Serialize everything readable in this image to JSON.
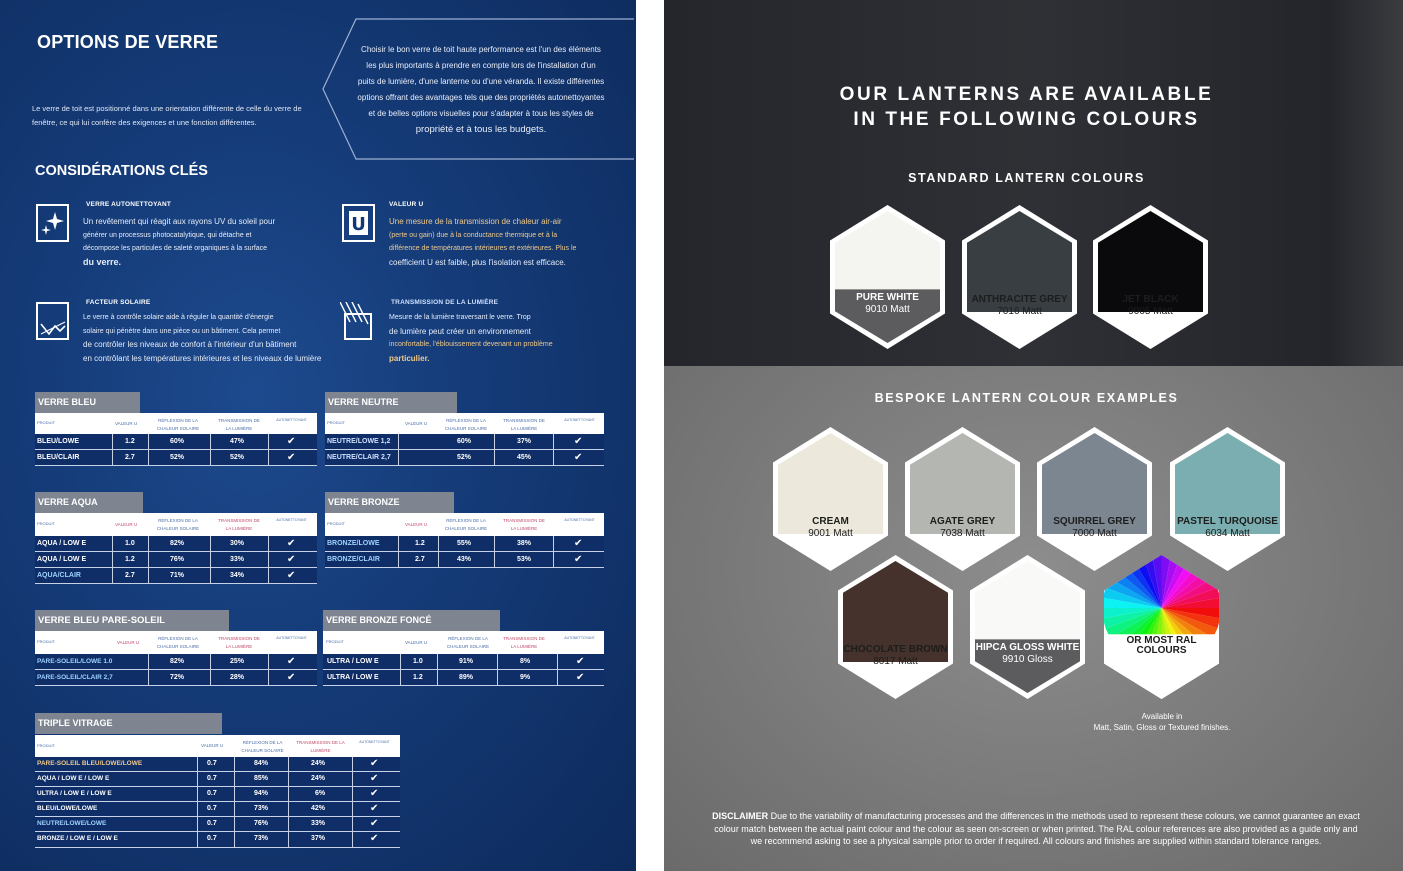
{
  "left_page": {
    "title": "OPTIONS DE VERRE",
    "intro": "Le verre de toit est positionné dans une orientation différente de celle du verre de fenêtre, ce qui lui confère des exigences et une fonction différentes.",
    "quote_lines": [
      "Choisir le bon verre de toit haute performance est l'un des éléments",
      "les plus importants à prendre en compte lors de l'installation d'un",
      "puits de lumière, d'une lanterne ou d'une véranda. Il existe différentes",
      "options offrant des avantages tels que des propriétés autonettoyantes",
      "et de belles options visuelles pour s'adapter à tous les styles de",
      "propriété et à tous les budgets."
    ],
    "subtitle": "CONSIDÉRATIONS CLÉS",
    "features": [
      {
        "title": "VERRE AUTONETTOYANT",
        "icon": "sparkle-icon",
        "text": [
          "Un revêtement qui réagit aux rayons UV du soleil pour",
          "générer un processus photocatalytique, qui détache et",
          "décompose les particules de saleté organiques à la surface",
          "du verre."
        ]
      },
      {
        "title": "VALEUR U",
        "icon": "u-value-icon",
        "text": [
          "Une mesure de la transmission de chaleur air-air",
          "(perte ou gain) due à la conductance thermique et à la",
          "différence de températures intérieures et extérieures. Plus le",
          "coefficient U est faible, plus l'isolation est efficace."
        ]
      },
      {
        "title": "FACTEUR SOLAIRE",
        "icon": "solar-factor-icon",
        "text": [
          "Le verre à contrôle solaire aide à réguler la quantité d'énergie",
          "solaire qui pénètre dans une pièce ou un bâtiment. Cela permet",
          "de contrôler les niveaux de confort à l'intérieur d'un bâtiment",
          "en contrôlant les températures intérieures et les niveaux de lumière"
        ]
      },
      {
        "title": "TRANSMISSION DE LA LUMIÈRE",
        "icon": "light-transmission-icon",
        "text": [
          "Mesure de la lumière traversant le verre. Trop",
          "de lumière peut créer un environnement",
          "inconfortable, l'éblouissement devenant un problème",
          "particulier."
        ]
      }
    ],
    "tables": [
      {
        "title": "VERRE BLEU",
        "cols": [
          "PRODUIT",
          "VALEUR U",
          "RÉFLEXION DE LA CHALEUR SOLAIRE",
          "TRANSMISSION DE LA LUMIÈRE",
          "AUTONETTOYANT"
        ],
        "rows": [
          [
            "BLEU/LOWE",
            "1.2",
            "60%",
            "47%",
            "✔"
          ],
          [
            "BLEU/CLAIR",
            "2.7",
            "52%",
            "52%",
            "✔"
          ]
        ]
      },
      {
        "title": "VERRE NEUTRE",
        "cols": [
          "PRODUIT",
          "VALEUR U",
          "RÉFLEXION DE LA CHALEUR SOLAIRE",
          "TRANSMISSION DE LA LUMIÈRE",
          "AUTONETTOYANT"
        ],
        "rows": [
          [
            "NEUTRE/LOWE 1,2",
            "",
            "60%",
            "37%",
            "✔"
          ],
          [
            "NEUTRE/CLAIR 2,7",
            "",
            "52%",
            "45%",
            "✔"
          ]
        ]
      },
      {
        "title": "VERRE AQUA",
        "cols": [
          "PRODUIT",
          "VALEUR U",
          "RÉFLEXION DE LA CHALEUR SOLAIRE",
          "TRANSMISSION DE LA LUMIÈRE",
          "AUTONETTOYANT"
        ],
        "rows": [
          [
            "AQUA / LOW E",
            "1.0",
            "82%",
            "30%",
            "✔"
          ],
          [
            "AQUA / LOW E",
            "1.2",
            "76%",
            "33%",
            "✔"
          ],
          [
            "AQUA/CLAIR",
            "2.7",
            "71%",
            "34%",
            "✔"
          ]
        ]
      },
      {
        "title": "VERRE BRONZE",
        "cols": [
          "PRODUIT",
          "VALEUR U",
          "RÉFLEXION DE LA CHALEUR SOLAIRE",
          "TRANSMISSION DE LA LUMIÈRE",
          "AUTONETTOYANT"
        ],
        "rows": [
          [
            "BRONZE/LOWE",
            "1.2",
            "55%",
            "38%",
            "✔"
          ],
          [
            "BRONZE/CLAIR",
            "2.7",
            "43%",
            "53%",
            "✔"
          ]
        ]
      },
      {
        "title": "VERRE BLEU PARE-SOLEIL",
        "cols": [
          "PRODUIT",
          "VALEUR U",
          "RÉFLEXION DE LA CHALEUR SOLAIRE",
          "TRANSMISSION DE LA LUMIÈRE",
          "AUTONETTOYANT"
        ],
        "rows": [
          [
            "PARE-SOLEIL/LOWE 1.0",
            "",
            "82%",
            "25%",
            "✔"
          ],
          [
            "PARE-SOLEIL/CLAIR 2,7",
            "",
            "72%",
            "28%",
            "✔"
          ]
        ]
      },
      {
        "title": "VERRE BRONZE FONCÉ",
        "cols": [
          "PRODUIT",
          "VALEUR U",
          "RÉFLEXION DE LA CHALEUR SOLAIRE",
          "TRANSMISSION DE LA LUMIÈRE",
          "AUTONETTOYANT"
        ],
        "rows": [
          [
            "ULTRA / LOW E",
            "1.0",
            "91%",
            "8%",
            "✔"
          ],
          [
            "ULTRA / LOW E",
            "1.2",
            "89%",
            "9%",
            "✔"
          ]
        ]
      },
      {
        "title": "TRIPLE VITRAGE",
        "cols": [
          "PRODUIT",
          "VALEUR U",
          "RÉFLEXION DE LA CHALEUR SOLAIRE",
          "TRANSMISSION DE LA LUMIÈRE",
          "AUTONETTOYANT"
        ],
        "rows": [
          [
            "PARE-SOLEIL BLEU/LOWE/LOWE",
            "0.7",
            "84%",
            "24%",
            "✔"
          ],
          [
            "AQUA / LOW E / LOW E",
            "0.7",
            "85%",
            "24%",
            "✔"
          ],
          [
            "ULTRA / LOW E / LOW E",
            "0.7",
            "94%",
            "6%",
            "✔"
          ],
          [
            "BLEU/LOWE/LOWE",
            "0.7",
            "73%",
            "42%",
            "✔"
          ],
          [
            "NEUTRE/LOWE/LOWE",
            "0.7",
            "76%",
            "33%",
            "✔"
          ],
          [
            "BRONZE / LOW E / LOW E",
            "0.7",
            "73%",
            "37%",
            "✔"
          ]
        ]
      }
    ]
  },
  "right_page": {
    "title_line1": "OUR LANTERNS ARE AVAILABLE",
    "title_line2": "IN THE FOLLOWING COLOURS",
    "standard_heading": "STANDARD LANTERN COLOURS",
    "standard_colours": [
      {
        "name": "PURE WHITE",
        "code": "9010 Matt",
        "hex": "#f4f4f0",
        "label_dark_band": true
      },
      {
        "name": "ANTHRACITE GREY",
        "code": "7016 Matt",
        "hex": "#383e42",
        "label_dark_band": false
      },
      {
        "name": "JET BLACK",
        "code": "9005 Matt",
        "hex": "#0a0a0d",
        "label_dark_band": false
      }
    ],
    "bespoke_heading": "BESPOKE LANTERN COLOUR EXAMPLES",
    "bespoke_colours": [
      {
        "name": "CREAM",
        "code": "9001 Matt",
        "hex": "#ece9dc",
        "label_dark_band": false
      },
      {
        "name": "AGATE GREY",
        "code": "7038 Matt",
        "hex": "#b4b6b1",
        "label_dark_band": false
      },
      {
        "name": "SQUIRREL GREY",
        "code": "7000 Matt",
        "hex": "#7b8690",
        "label_dark_band": false
      },
      {
        "name": "PASTEL TURQUOISE",
        "code": "6034 Matt",
        "hex": "#7aaeb0",
        "label_dark_band": false
      },
      {
        "name": "CHOCOLATE BROWN",
        "code": "8017 Matt",
        "hex": "#45322c",
        "label_dark_band": false
      },
      {
        "name": "HIPCA GLOSS WHITE",
        "code": "9910 Gloss",
        "hex": "#f9f9f7",
        "label_dark_band": true
      },
      {
        "name": "OR MOST RAL COLOURS",
        "code": "",
        "hex": "rainbow",
        "label_dark_band": false
      }
    ],
    "available_line1": "Available in",
    "available_line2": "Matt, Satin, Gloss or Textured finishes.",
    "disclaimer_label": "DISCLAIMER",
    "disclaimer_text": "Due to the variability of manufacturing processes and the differences in the methods used to represent these colours, we cannot guarantee an exact colour match between the actual paint colour and the colour as seen on-screen or when printed. The RAL colour references are also provided as a guide only and we recommend asking to see a physical sample prior to order if required. All colours and finishes are supplied within standard tolerance ranges."
  }
}
